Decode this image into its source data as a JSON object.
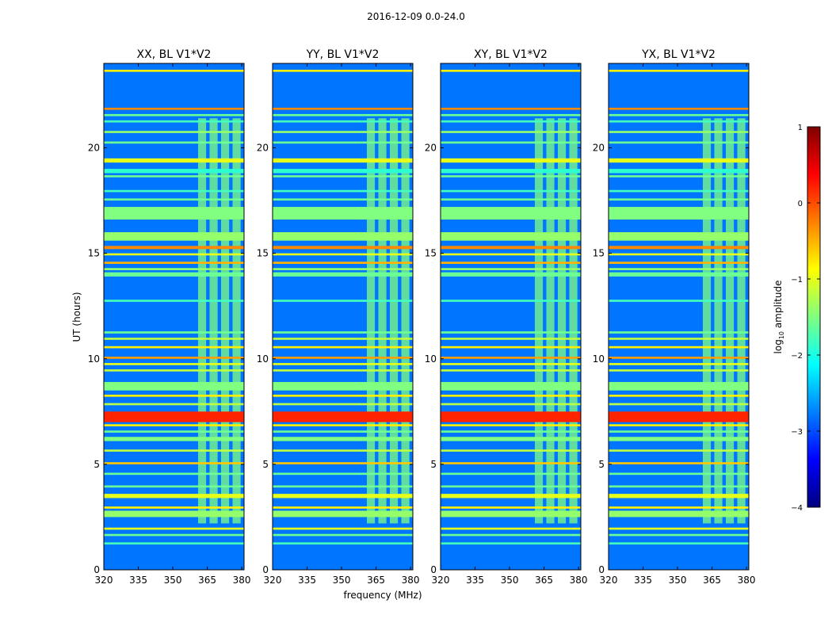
{
  "figure_title": "2016-12-09 0.0-24.0",
  "chart_data": {
    "type": "heatmap",
    "title": "2016-12-09 0.0-24.0",
    "xlabel": "frequency (MHz)",
    "ylabel": "UT (hours)",
    "x_range": [
      320,
      381
    ],
    "y_range": [
      0,
      24
    ],
    "x_ticks": [
      320,
      335,
      350,
      365,
      380
    ],
    "y_ticks": [
      0,
      5,
      10,
      15,
      20
    ],
    "panels": [
      {
        "title": "XX, BL V1*V2",
        "polarization": "XX"
      },
      {
        "title": "YY, BL V1*V2",
        "polarization": "YY"
      },
      {
        "title": "XY, BL V1*V2",
        "polarization": "XY"
      },
      {
        "title": "YX, BL V1*V2",
        "polarization": "YX"
      }
    ],
    "colorbar": {
      "label": "log10 amplitude",
      "label_base": "log",
      "label_sub": "10",
      "label_rest": " amplitude",
      "range": [
        -4,
        1
      ],
      "ticks": [
        {
          "value": 1,
          "label": "1"
        },
        {
          "value": 0,
          "label": "0"
        },
        {
          "value": -1,
          "label": "−1"
        },
        {
          "value": -2,
          "label": "−2"
        },
        {
          "value": -3,
          "label": "−3"
        },
        {
          "value": -4,
          "label": "−4"
        }
      ],
      "colormap": "jet"
    },
    "background_level": -2.8,
    "rfi_frequency_band_mhz": [
      361,
      380
    ],
    "rfi_channels_mhz": [
      [
        361,
        364.5
      ],
      [
        366,
        369.5
      ],
      [
        371,
        374.5
      ],
      [
        376,
        379.5
      ]
    ],
    "time_bands_hours": [
      {
        "t0": 23.6,
        "t1": 23.7,
        "level": -0.8
      },
      {
        "t0": 21.8,
        "t1": 21.9,
        "level": -0.3
      },
      {
        "t0": 21.5,
        "t1": 21.6,
        "level": -1.6
      },
      {
        "t0": 21.2,
        "t1": 21.3,
        "level": -1.8
      },
      {
        "t0": 20.7,
        "t1": 20.8,
        "level": -1.4
      },
      {
        "t0": 20.2,
        "t1": 20.3,
        "level": -1.6
      },
      {
        "t0": 19.3,
        "t1": 19.5,
        "level": -1.0
      },
      {
        "t0": 18.8,
        "t1": 19.0,
        "level": -1.9
      },
      {
        "t0": 18.6,
        "t1": 18.7,
        "level": -1.6
      },
      {
        "t0": 17.9,
        "t1": 18.0,
        "level": -1.8
      },
      {
        "t0": 17.5,
        "t1": 17.6,
        "level": -1.6
      },
      {
        "t0": 16.6,
        "t1": 17.2,
        "level": -1.5
      },
      {
        "t0": 15.6,
        "t1": 16.0,
        "level": -1.4
      },
      {
        "t0": 15.2,
        "t1": 15.35,
        "level": -0.3
      },
      {
        "t0": 14.9,
        "t1": 15.0,
        "level": -1.0
      },
      {
        "t0": 14.5,
        "t1": 14.6,
        "level": -0.5
      },
      {
        "t0": 14.2,
        "t1": 14.3,
        "level": -1.4
      },
      {
        "t0": 13.9,
        "t1": 14.1,
        "level": -1.6
      },
      {
        "t0": 12.7,
        "t1": 12.8,
        "level": -1.8
      },
      {
        "t0": 11.2,
        "t1": 11.3,
        "level": -1.6
      },
      {
        "t0": 10.9,
        "t1": 11.0,
        "level": -1.2
      },
      {
        "t0": 10.5,
        "t1": 10.6,
        "level": -0.8
      },
      {
        "t0": 10.0,
        "t1": 10.1,
        "level": -0.4
      },
      {
        "t0": 9.7,
        "t1": 9.8,
        "level": -1.0
      },
      {
        "t0": 9.4,
        "t1": 9.5,
        "level": -1.2
      },
      {
        "t0": 8.5,
        "t1": 8.9,
        "level": -1.5
      },
      {
        "t0": 8.2,
        "t1": 8.3,
        "level": -0.8
      },
      {
        "t0": 7.8,
        "t1": 7.9,
        "level": -1.2
      },
      {
        "t0": 7.0,
        "t1": 7.5,
        "level": 0.2
      },
      {
        "t0": 6.8,
        "t1": 6.9,
        "level": -0.8
      },
      {
        "t0": 6.5,
        "t1": 6.6,
        "level": -1.6
      },
      {
        "t0": 6.1,
        "t1": 6.3,
        "level": -1.5
      },
      {
        "t0": 5.6,
        "t1": 5.7,
        "level": -1.2
      },
      {
        "t0": 5.0,
        "t1": 5.1,
        "level": -0.6
      },
      {
        "t0": 4.5,
        "t1": 4.6,
        "level": -1.6
      },
      {
        "t0": 3.9,
        "t1": 4.0,
        "level": -1.6
      },
      {
        "t0": 3.4,
        "t1": 3.6,
        "level": -1.0
      },
      {
        "t0": 2.9,
        "t1": 3.0,
        "level": -0.8
      },
      {
        "t0": 2.5,
        "t1": 2.8,
        "level": -1.4
      },
      {
        "t0": 1.9,
        "t1": 2.0,
        "level": -1.0
      },
      {
        "t0": 1.6,
        "t1": 1.7,
        "level": -1.6
      },
      {
        "t0": 1.2,
        "t1": 1.3,
        "level": -1.8
      }
    ]
  }
}
